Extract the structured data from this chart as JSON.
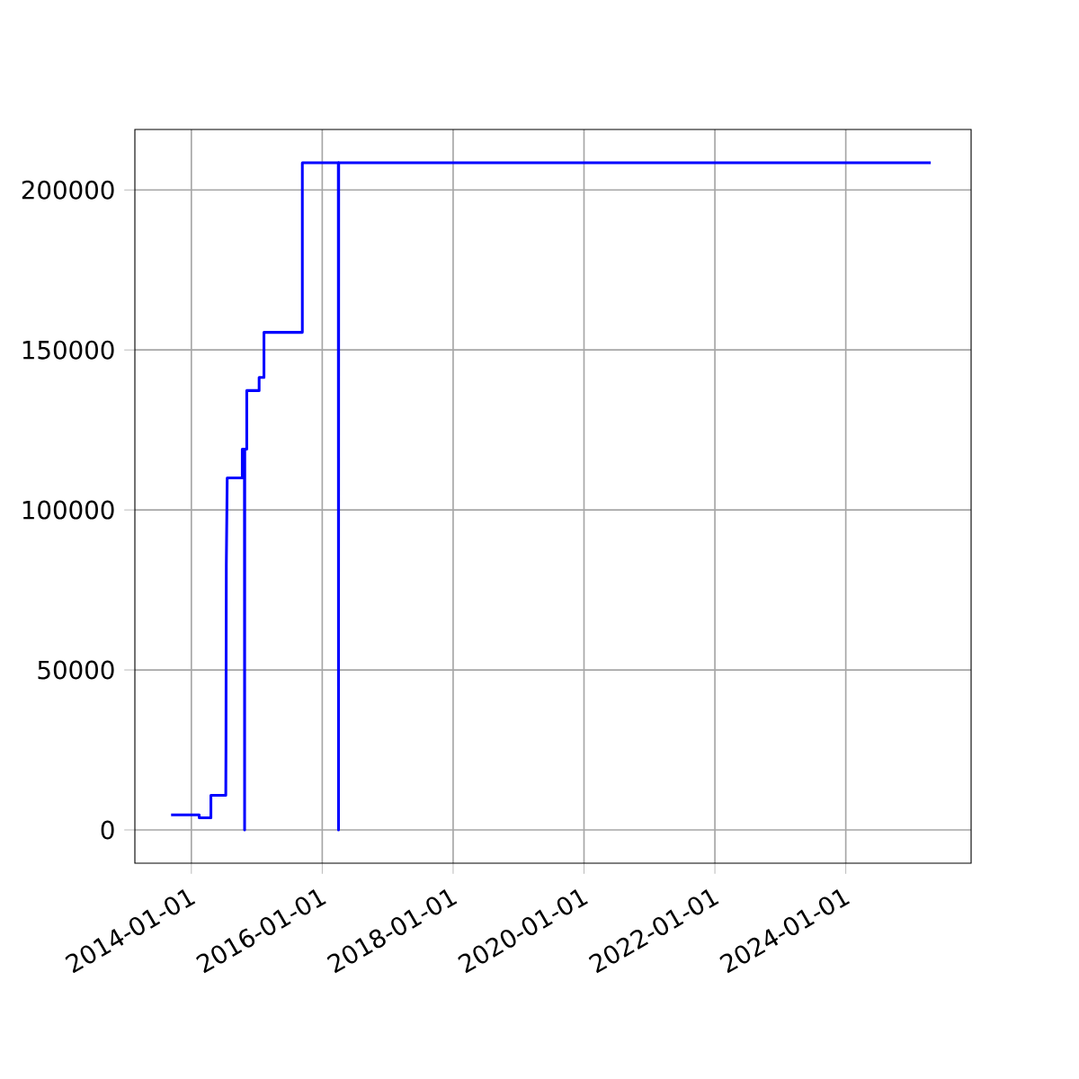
{
  "chart_data": {
    "type": "line",
    "x": [
      "2013-09-10",
      "2014-02-14",
      "2014-02-14",
      "2014-04-20",
      "2014-04-20",
      "2014-07-12",
      "2014-07-13",
      "2014-07-15",
      "2014-07-20",
      "2014-10-12",
      "2014-10-12",
      "2014-10-24",
      "2014-10-25",
      "2014-10-26",
      "2014-11-06",
      "2014-11-06",
      "2015-01-14",
      "2015-01-14",
      "2015-02-10",
      "2015-02-10",
      "2015-09-12",
      "2015-09-12",
      "2016-03-31",
      "2016-04-01",
      "2016-04-02",
      "2025-04-20"
    ],
    "series": [
      {
        "color": "#0000ff",
        "values": [
          4700,
          4700,
          3800,
          3800,
          10800,
          10800,
          25000,
          83000,
          110000,
          110000,
          119000,
          119000,
          0,
          119000,
          119000,
          137300,
          137300,
          141400,
          141400,
          155500,
          155500,
          208500,
          208500,
          0,
          208500,
          208500
        ]
      }
    ],
    "xlim": [
      "2013-02-20",
      "2025-12-01"
    ],
    "xticks": [
      "2014-01-01",
      "2016-01-01",
      "2018-01-01",
      "2020-01-01",
      "2022-01-01",
      "2024-01-01"
    ],
    "ylim": [
      -10400,
      218900
    ],
    "yticks": [
      0,
      50000,
      100000,
      150000,
      200000
    ],
    "grid": true
  }
}
